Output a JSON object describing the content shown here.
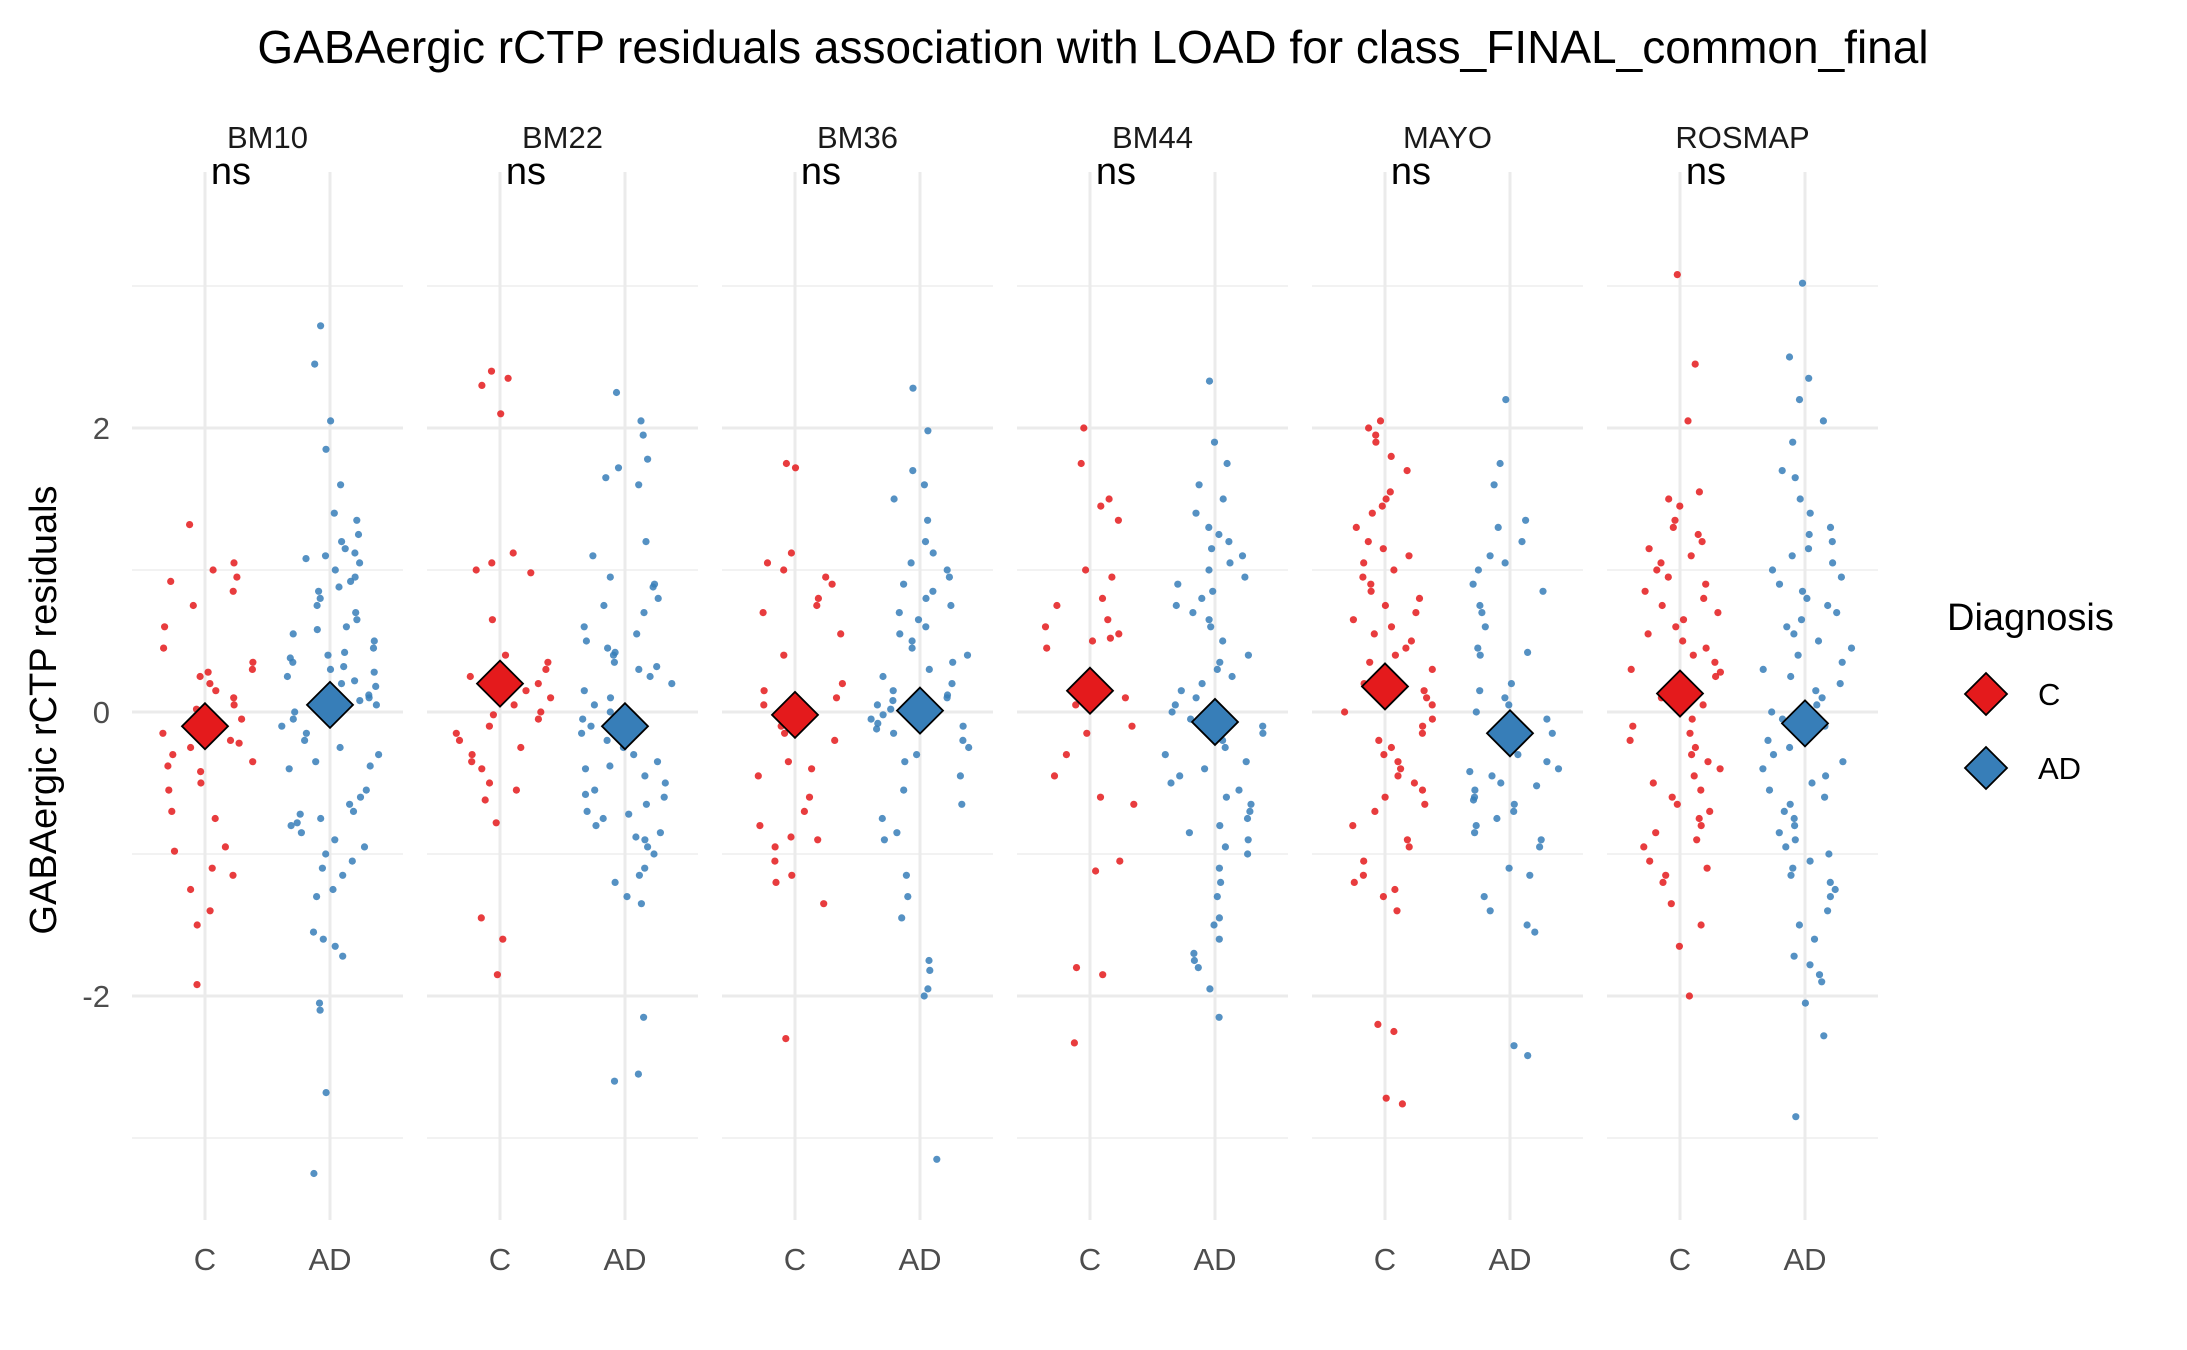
{
  "chart_data": {
    "type": "scatter",
    "title": "GABAergic rCTP residuals association with LOAD for class_FINAL_common_final",
    "ylabel": "GABAergic rCTP residuals",
    "xlabel": "",
    "categories": [
      "C",
      "AD"
    ],
    "ylim": [
      -3.6,
      4.2
    ],
    "yticks": [
      -2,
      0,
      2
    ],
    "y_gridlines": [
      -3,
      -2,
      -1,
      0,
      1,
      2,
      3
    ],
    "grid": true,
    "legend": {
      "title": "Diagnosis",
      "placement": "right",
      "entries": [
        {
          "label": "C",
          "color": "#e41a1c"
        },
        {
          "label": "AD",
          "color": "#377eb8"
        }
      ]
    },
    "colors": {
      "C": "#e41a1c",
      "AD": "#377eb8",
      "marker_outline": "#000000"
    },
    "significance_label": "ns",
    "panels": [
      {
        "name": "BM10",
        "sig": "ns",
        "C": {
          "mean": -0.1,
          "points": [
            1.32,
            1.05,
            1.0,
            0.95,
            0.92,
            0.85,
            0.75,
            0.6,
            0.45,
            0.35,
            0.3,
            0.28,
            0.25,
            0.2,
            0.15,
            0.1,
            0.05,
            0.02,
            -0.02,
            -0.05,
            -0.1,
            -0.12,
            -0.15,
            -0.2,
            -0.22,
            -0.25,
            -0.3,
            -0.35,
            -0.38,
            -0.42,
            -0.5,
            -0.55,
            -0.7,
            -0.75,
            -0.95,
            -0.98,
            -1.1,
            -1.15,
            -1.25,
            -1.4,
            -1.5,
            -1.92
          ]
        },
        "AD": {
          "mean": 0.05,
          "points": [
            2.72,
            2.45,
            2.05,
            1.85,
            1.6,
            1.4,
            1.35,
            1.25,
            1.2,
            1.15,
            1.12,
            1.1,
            1.08,
            1.05,
            1.0,
            0.95,
            0.92,
            0.88,
            0.85,
            0.8,
            0.75,
            0.7,
            0.65,
            0.6,
            0.58,
            0.55,
            0.5,
            0.45,
            0.42,
            0.4,
            0.38,
            0.35,
            0.32,
            0.3,
            0.28,
            0.25,
            0.22,
            0.2,
            0.18,
            0.15,
            0.12,
            0.1,
            0.08,
            0.05,
            0.0,
            -0.05,
            -0.1,
            -0.15,
            -0.2,
            -0.25,
            -0.3,
            -0.35,
            -0.38,
            -0.4,
            -0.55,
            -0.6,
            -0.65,
            -0.7,
            -0.72,
            -0.75,
            -0.78,
            -0.8,
            -0.85,
            -0.9,
            -0.95,
            -1.0,
            -1.05,
            -1.1,
            -1.15,
            -1.25,
            -1.3,
            -1.55,
            -1.6,
            -1.65,
            -1.72,
            -2.05,
            -2.1,
            -2.68,
            -3.25
          ]
        }
      },
      {
        "name": "BM22",
        "sig": "ns",
        "C": {
          "mean": 0.2,
          "points": [
            2.4,
            2.35,
            2.3,
            2.1,
            1.12,
            1.05,
            1.0,
            0.98,
            0.65,
            0.4,
            0.35,
            0.3,
            0.25,
            0.2,
            0.15,
            0.1,
            0.05,
            0.0,
            -0.02,
            -0.05,
            -0.1,
            -0.15,
            -0.2,
            -0.25,
            -0.3,
            -0.35,
            -0.4,
            -0.5,
            -0.55,
            -0.62,
            -0.78,
            -1.45,
            -1.6,
            -1.85
          ]
        },
        "AD": {
          "mean": -0.1,
          "points": [
            2.25,
            2.05,
            1.95,
            1.78,
            1.72,
            1.65,
            1.6,
            1.2,
            1.1,
            0.95,
            0.9,
            0.88,
            0.8,
            0.75,
            0.7,
            0.6,
            0.55,
            0.5,
            0.45,
            0.42,
            0.4,
            0.35,
            0.32,
            0.3,
            0.25,
            0.2,
            0.15,
            0.1,
            0.05,
            0.0,
            -0.05,
            -0.1,
            -0.15,
            -0.2,
            -0.25,
            -0.3,
            -0.35,
            -0.38,
            -0.4,
            -0.45,
            -0.5,
            -0.55,
            -0.58,
            -0.6,
            -0.65,
            -0.7,
            -0.72,
            -0.75,
            -0.8,
            -0.85,
            -0.88,
            -0.9,
            -0.95,
            -1.0,
            -1.1,
            -1.15,
            -1.2,
            -1.3,
            -1.35,
            -2.15,
            -2.55,
            -2.6
          ]
        }
      },
      {
        "name": "BM36",
        "sig": "ns",
        "C": {
          "mean": -0.02,
          "points": [
            1.75,
            1.72,
            1.12,
            1.05,
            1.0,
            0.95,
            0.9,
            0.8,
            0.75,
            0.7,
            0.55,
            0.4,
            0.2,
            0.15,
            0.1,
            0.05,
            -0.05,
            -0.1,
            -0.15,
            -0.2,
            -0.35,
            -0.4,
            -0.45,
            -0.6,
            -0.7,
            -0.8,
            -0.88,
            -0.9,
            -0.95,
            -1.05,
            -1.15,
            -1.2,
            -1.35,
            -2.3
          ]
        },
        "AD": {
          "mean": 0.01,
          "points": [
            2.28,
            1.98,
            1.7,
            1.6,
            1.5,
            1.35,
            1.2,
            1.12,
            1.05,
            1.0,
            0.95,
            0.9,
            0.85,
            0.8,
            0.75,
            0.7,
            0.65,
            0.6,
            0.55,
            0.5,
            0.45,
            0.4,
            0.35,
            0.3,
            0.25,
            0.2,
            0.15,
            0.12,
            0.1,
            0.08,
            0.05,
            0.02,
            0.0,
            -0.02,
            -0.05,
            -0.08,
            -0.1,
            -0.12,
            -0.15,
            -0.2,
            -0.25,
            -0.3,
            -0.35,
            -0.45,
            -0.55,
            -0.65,
            -0.75,
            -0.85,
            -0.9,
            -1.15,
            -1.3,
            -1.45,
            -1.75,
            -1.82,
            -1.95,
            -2.0,
            -3.15
          ]
        }
      },
      {
        "name": "BM44",
        "sig": "ns",
        "C": {
          "mean": 0.15,
          "points": [
            2.0,
            1.75,
            1.5,
            1.45,
            1.35,
            1.0,
            0.95,
            0.8,
            0.75,
            0.65,
            0.6,
            0.55,
            0.52,
            0.5,
            0.45,
            0.2,
            0.15,
            0.1,
            0.05,
            -0.1,
            -0.15,
            -0.3,
            -0.45,
            -0.6,
            -0.65,
            -1.05,
            -1.12,
            -1.8,
            -1.85,
            -2.33
          ]
        },
        "AD": {
          "mean": -0.07,
          "points": [
            2.33,
            1.9,
            1.75,
            1.6,
            1.5,
            1.4,
            1.3,
            1.25,
            1.2,
            1.15,
            1.1,
            1.05,
            1.0,
            0.95,
            0.9,
            0.85,
            0.8,
            0.75,
            0.7,
            0.65,
            0.6,
            0.5,
            0.4,
            0.35,
            0.3,
            0.25,
            0.2,
            0.15,
            0.1,
            0.05,
            0.0,
            -0.05,
            -0.1,
            -0.15,
            -0.2,
            -0.25,
            -0.3,
            -0.35,
            -0.4,
            -0.45,
            -0.5,
            -0.55,
            -0.6,
            -0.65,
            -0.7,
            -0.75,
            -0.8,
            -0.85,
            -0.9,
            -0.95,
            -1.0,
            -1.1,
            -1.2,
            -1.3,
            -1.45,
            -1.5,
            -1.6,
            -1.7,
            -1.75,
            -1.8,
            -1.95,
            -2.15
          ]
        }
      },
      {
        "name": "MAYO",
        "sig": "ns",
        "C": {
          "mean": 0.18,
          "points": [
            2.05,
            2.0,
            1.95,
            1.9,
            1.8,
            1.7,
            1.55,
            1.5,
            1.45,
            1.4,
            1.3,
            1.2,
            1.15,
            1.1,
            1.05,
            1.0,
            0.95,
            0.9,
            0.85,
            0.8,
            0.75,
            0.7,
            0.65,
            0.6,
            0.55,
            0.5,
            0.45,
            0.4,
            0.35,
            0.3,
            0.25,
            0.2,
            0.15,
            0.1,
            0.05,
            0.0,
            -0.05,
            -0.1,
            -0.15,
            -0.2,
            -0.25,
            -0.3,
            -0.35,
            -0.4,
            -0.45,
            -0.5,
            -0.55,
            -0.6,
            -0.65,
            -0.7,
            -0.8,
            -0.9,
            -0.95,
            -1.05,
            -1.15,
            -1.2,
            -1.25,
            -1.3,
            -1.4,
            -2.2,
            -2.25,
            -2.72,
            -2.76
          ]
        },
        "AD": {
          "mean": -0.15,
          "points": [
            2.2,
            1.75,
            1.6,
            1.35,
            1.3,
            1.2,
            1.1,
            1.05,
            1.0,
            0.9,
            0.85,
            0.75,
            0.7,
            0.6,
            0.45,
            0.42,
            0.4,
            0.2,
            0.15,
            0.1,
            0.05,
            0.0,
            -0.05,
            -0.1,
            -0.15,
            -0.2,
            -0.25,
            -0.3,
            -0.35,
            -0.4,
            -0.42,
            -0.45,
            -0.5,
            -0.52,
            -0.55,
            -0.6,
            -0.62,
            -0.65,
            -0.7,
            -0.75,
            -0.8,
            -0.85,
            -0.9,
            -0.95,
            -1.1,
            -1.15,
            -1.3,
            -1.4,
            -1.5,
            -1.55,
            -2.35,
            -2.42
          ]
        }
      },
      {
        "name": "ROSMAP",
        "sig": "ns",
        "C": {
          "mean": 0.13,
          "points": [
            3.08,
            2.45,
            2.05,
            1.55,
            1.5,
            1.45,
            1.35,
            1.3,
            1.25,
            1.2,
            1.15,
            1.1,
            1.05,
            1.0,
            0.95,
            0.9,
            0.85,
            0.8,
            0.75,
            0.7,
            0.65,
            0.6,
            0.55,
            0.5,
            0.45,
            0.4,
            0.35,
            0.3,
            0.28,
            0.25,
            0.2,
            0.15,
            0.1,
            0.05,
            0.0,
            -0.05,
            -0.1,
            -0.15,
            -0.2,
            -0.25,
            -0.3,
            -0.35,
            -0.4,
            -0.45,
            -0.5,
            -0.55,
            -0.6,
            -0.65,
            -0.7,
            -0.75,
            -0.8,
            -0.85,
            -0.9,
            -0.95,
            -1.05,
            -1.1,
            -1.15,
            -1.2,
            -1.35,
            -1.5,
            -1.65,
            -2.0
          ]
        },
        "AD": {
          "mean": -0.08,
          "points": [
            3.02,
            2.5,
            2.35,
            2.2,
            2.05,
            1.9,
            1.7,
            1.65,
            1.5,
            1.4,
            1.3,
            1.25,
            1.2,
            1.15,
            1.1,
            1.05,
            1.0,
            0.95,
            0.9,
            0.85,
            0.8,
            0.75,
            0.7,
            0.65,
            0.6,
            0.55,
            0.5,
            0.45,
            0.4,
            0.35,
            0.3,
            0.25,
            0.2,
            0.15,
            0.1,
            0.05,
            0.0,
            -0.05,
            -0.1,
            -0.15,
            -0.2,
            -0.25,
            -0.3,
            -0.35,
            -0.4,
            -0.45,
            -0.5,
            -0.55,
            -0.6,
            -0.65,
            -0.7,
            -0.75,
            -0.8,
            -0.85,
            -0.9,
            -0.95,
            -1.0,
            -1.05,
            -1.1,
            -1.15,
            -1.2,
            -1.25,
            -1.3,
            -1.4,
            -1.5,
            -1.6,
            -1.72,
            -1.78,
            -1.85,
            -1.9,
            -2.05,
            -2.28,
            -2.85
          ]
        }
      }
    ]
  }
}
